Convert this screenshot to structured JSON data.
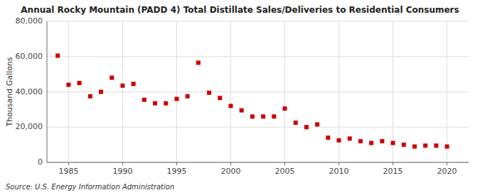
{
  "chart_data": {
    "type": "scatter",
    "title": "Annual Rocky Mountain (PADD 4) Total Distillate Sales/Deliveries to Residential Consumers",
    "ylabel": "Thousand Gallons",
    "source": "Source: U.S. Energy Information Administration",
    "x": [
      1984,
      1985,
      1986,
      1987,
      1988,
      1989,
      1990,
      1991,
      1992,
      1993,
      1994,
      1995,
      1996,
      1997,
      1998,
      1999,
      2000,
      2001,
      2002,
      2003,
      2004,
      2005,
      2006,
      2007,
      2008,
      2009,
      2010,
      2011,
      2012,
      2013,
      2014,
      2015,
      2016,
      2017,
      2018,
      2019,
      2020
    ],
    "values": [
      60500,
      44000,
      45000,
      37500,
      40000,
      48000,
      43500,
      44500,
      35500,
      33500,
      33500,
      36000,
      37500,
      56500,
      39500,
      36500,
      32000,
      29500,
      26000,
      26000,
      26000,
      30500,
      22500,
      20000,
      21500,
      14000,
      12500,
      13500,
      12000,
      11000,
      12000,
      11000,
      10000,
      9000,
      9500,
      9500,
      9000
    ],
    "color": "#cc0000",
    "marker": "square",
    "xlim": [
      1983,
      2022
    ],
    "ylim": [
      0,
      80000
    ],
    "xticks": [
      1985,
      1990,
      1995,
      2000,
      2005,
      2010,
      2015,
      2020
    ],
    "yticks": [
      0,
      {
        "value": 20000,
        "label": "20,000"
      },
      {
        "value": 40000,
        "label": "40,000"
      },
      {
        "value": 60000,
        "label": "60,000"
      },
      {
        "value": 80000,
        "label": "80,000"
      }
    ],
    "grid": true
  }
}
